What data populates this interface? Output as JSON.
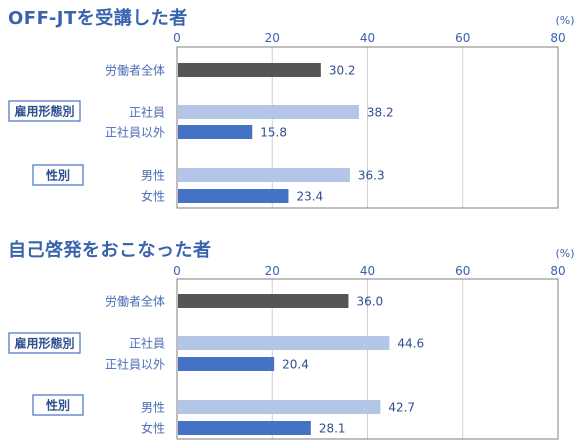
{
  "chart_data": [
    {
      "type": "bar",
      "orientation": "horizontal",
      "title": "OFF-JTを受講した者",
      "unit": "(%)",
      "xlim": [
        0,
        80
      ],
      "xticks": [
        0,
        20,
        40,
        60,
        80
      ],
      "groups": [
        {
          "label": "",
          "categories": [
            "労働者全体"
          ]
        },
        {
          "label": "雇用形態別",
          "categories": [
            "正社員",
            "正社員以外"
          ]
        },
        {
          "label": "性別",
          "categories": [
            "男性",
            "女性"
          ]
        }
      ],
      "categories": [
        "労働者全体",
        "正社員",
        "正社員以外",
        "男性",
        "女性"
      ],
      "values": [
        30.2,
        38.2,
        15.8,
        36.3,
        23.4
      ],
      "value_labels": [
        "30.2",
        "38.2",
        "15.8",
        "36.3",
        "23.4"
      ],
      "colors": [
        "#555555",
        "#b4c6e7",
        "#4472c4",
        "#b4c6e7",
        "#4472c4"
      ],
      "grid": true
    },
    {
      "type": "bar",
      "orientation": "horizontal",
      "title": "自己啓発をおこなった者",
      "unit": "(%)",
      "xlim": [
        0,
        80
      ],
      "xticks": [
        0,
        20,
        40,
        60,
        80
      ],
      "groups": [
        {
          "label": "",
          "categories": [
            "労働者全体"
          ]
        },
        {
          "label": "雇用形態別",
          "categories": [
            "正社員",
            "正社員以外"
          ]
        },
        {
          "label": "性別",
          "categories": [
            "男性",
            "女性"
          ]
        }
      ],
      "categories": [
        "労働者全体",
        "正社員",
        "正社員以外",
        "男性",
        "女性"
      ],
      "values": [
        36.0,
        44.6,
        20.4,
        42.7,
        28.1
      ],
      "value_labels": [
        "36.0",
        "44.6",
        "20.4",
        "42.7",
        "28.1"
      ],
      "colors": [
        "#555555",
        "#b4c6e7",
        "#4472c4",
        "#b4c6e7",
        "#4472c4"
      ],
      "grid": true
    }
  ]
}
